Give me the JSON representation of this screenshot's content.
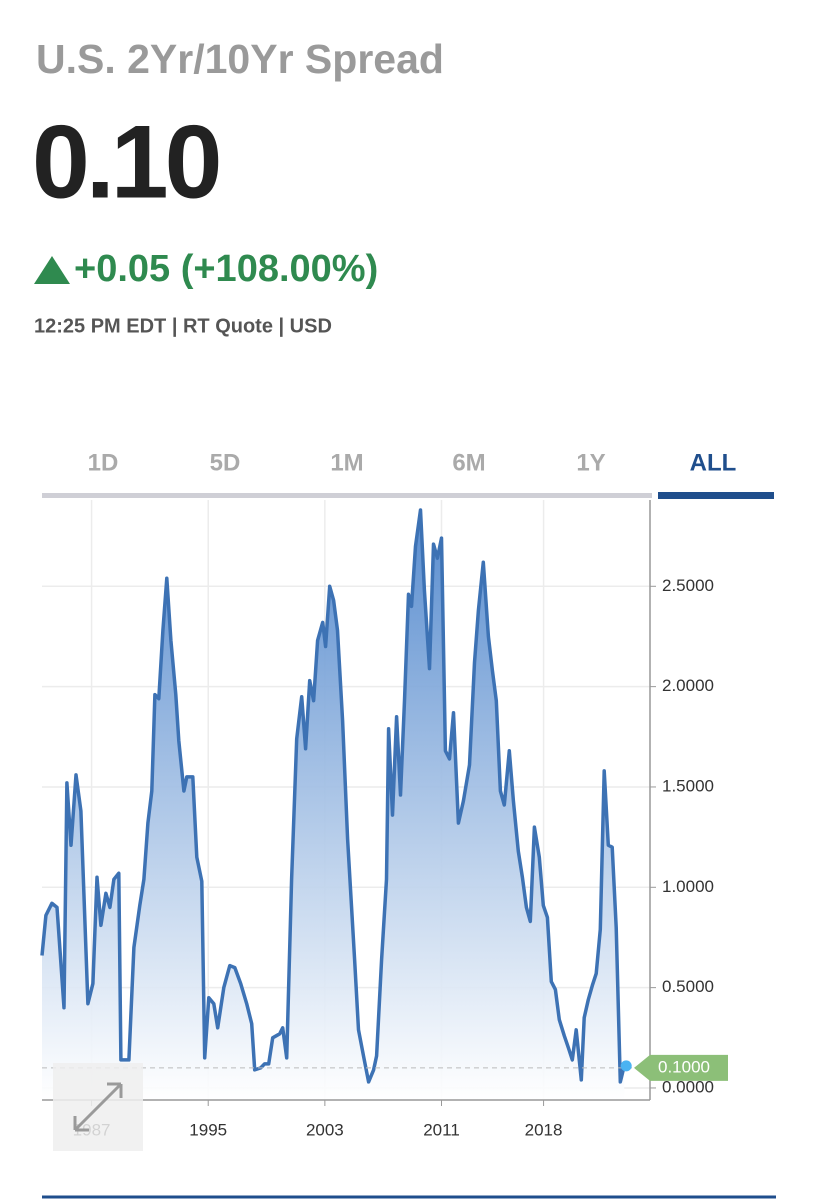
{
  "header": {
    "title": "U.S. 2Yr/10Yr Spread",
    "price": "0.10",
    "change": "+0.05 (+108.00%)",
    "meta": "12:25 PM EDT | RT Quote | USD"
  },
  "tabs": {
    "items": [
      "1D",
      "5D",
      "1M",
      "6M",
      "1Y",
      "ALL"
    ],
    "active": 5
  },
  "chart_data": {
    "type": "area",
    "color": "#3d72b4",
    "x": [
      1983.6,
      1983.87,
      1984.28,
      1984.63,
      1985.11,
      1985.31,
      1985.59,
      1985.93,
      1986.27,
      1986.75,
      1987.09,
      1987.37,
      1987.64,
      1987.98,
      1988.26,
      1988.53,
      1988.87,
      1989.01,
      1989.56,
      1989.9,
      1990.31,
      1990.59,
      1990.86,
      1991.13,
      1991.34,
      1991.61,
      1991.89,
      1992.16,
      1992.44,
      1992.78,
      1992.98,
      1993.33,
      1993.53,
      1993.94,
      1994.22,
      1994.56,
      1994.76,
      1995.04,
      1995.38,
      1995.65,
      1996.07,
      1996.48,
      1996.82,
      1997.23,
      1997.64,
      1997.98,
      1998.19,
      1998.6,
      1998.87,
      1999.15,
      1999.42,
      1999.9,
      2000.11,
      2000.38,
      2000.72,
      2001.07,
      2001.41,
      2001.68,
      2001.96,
      2002.23,
      2002.5,
      2002.85,
      2003.05,
      2003.33,
      2003.6,
      2003.87,
      2004.22,
      2004.56,
      2005.04,
      2005.31,
      2005.65,
      2006.0,
      2006.34,
      2006.55,
      2006.89,
      2007.23,
      2007.37,
      2007.64,
      2007.92,
      2008.19,
      2008.46,
      2008.74,
      2008.94,
      2009.22,
      2009.56,
      2009.83,
      2010.18,
      2010.45,
      2010.72,
      2011.0,
      2011.27,
      2011.55,
      2011.82,
      2012.16,
      2012.5,
      2012.92,
      2013.26,
      2013.53,
      2013.87,
      2014.22,
      2014.49,
      2014.76,
      2015.04,
      2015.31,
      2015.65,
      2015.93,
      2016.27,
      2016.55,
      2016.82,
      2017.09,
      2017.37,
      2017.71,
      2017.98,
      2018.26,
      2018.53,
      2018.81,
      2019.08,
      2019.42,
      2019.7,
      2019.97,
      2020.24,
      2020.59,
      2020.79,
      2021.07,
      2021.34,
      2021.61,
      2021.89,
      2022.16,
      2022.44,
      2022.71,
      2022.98,
      2023.26,
      2023.53
    ],
    "values": [
      0.66,
      0.86,
      0.92,
      0.9,
      0.4,
      1.52,
      1.21,
      1.56,
      1.38,
      0.42,
      0.52,
      1.05,
      0.81,
      0.97,
      0.9,
      1.04,
      1.07,
      0.14,
      0.14,
      0.7,
      0.91,
      1.04,
      1.32,
      1.48,
      1.96,
      1.94,
      2.28,
      2.54,
      2.23,
      1.96,
      1.73,
      1.48,
      1.55,
      1.55,
      1.15,
      1.03,
      0.15,
      0.45,
      0.42,
      0.3,
      0.5,
      0.61,
      0.6,
      0.52,
      0.42,
      0.32,
      0.09,
      0.1,
      0.12,
      0.12,
      0.25,
      0.27,
      0.3,
      0.15,
      1.04,
      1.74,
      1.95,
      1.69,
      2.03,
      1.93,
      2.23,
      2.32,
      2.2,
      2.5,
      2.43,
      2.28,
      1.83,
      1.24,
      0.64,
      0.29,
      0.16,
      0.03,
      0.09,
      0.16,
      0.64,
      1.04,
      1.79,
      1.36,
      1.85,
      1.46,
      1.93,
      2.46,
      2.4,
      2.7,
      2.88,
      2.48,
      2.09,
      2.71,
      2.64,
      2.74,
      1.68,
      1.64,
      1.87,
      1.32,
      1.43,
      1.61,
      2.12,
      2.38,
      2.62,
      2.25,
      2.08,
      1.93,
      1.48,
      1.41,
      1.68,
      1.43,
      1.18,
      1.05,
      0.9,
      0.83,
      1.3,
      1.15,
      0.91,
      0.85,
      0.53,
      0.49,
      0.34,
      0.26,
      0.2,
      0.14,
      0.29,
      0.04,
      0.35,
      0.44,
      0.51,
      0.57,
      0.79,
      1.58,
      1.21,
      1.2,
      0.8,
      0.03,
      0.11
    ],
    "xlim": [
      1983.6,
      2025.3
    ],
    "xticks": [
      1987,
      1995,
      2003,
      2011,
      2018
    ],
    "ylim": [
      -0.06,
      2.93
    ],
    "yticks": [
      {
        "value": 0,
        "label": "0.0000"
      },
      {
        "value": 0.5,
        "label": "0.5000"
      },
      {
        "value": 1,
        "label": "1.0000"
      },
      {
        "value": 1.5,
        "label": "1.5000"
      },
      {
        "value": 2,
        "label": "2.0000"
      },
      {
        "value": 2.5,
        "label": "2.5000"
      }
    ],
    "last": {
      "value": 0.1,
      "label": "0.1000"
    },
    "grid": true
  }
}
